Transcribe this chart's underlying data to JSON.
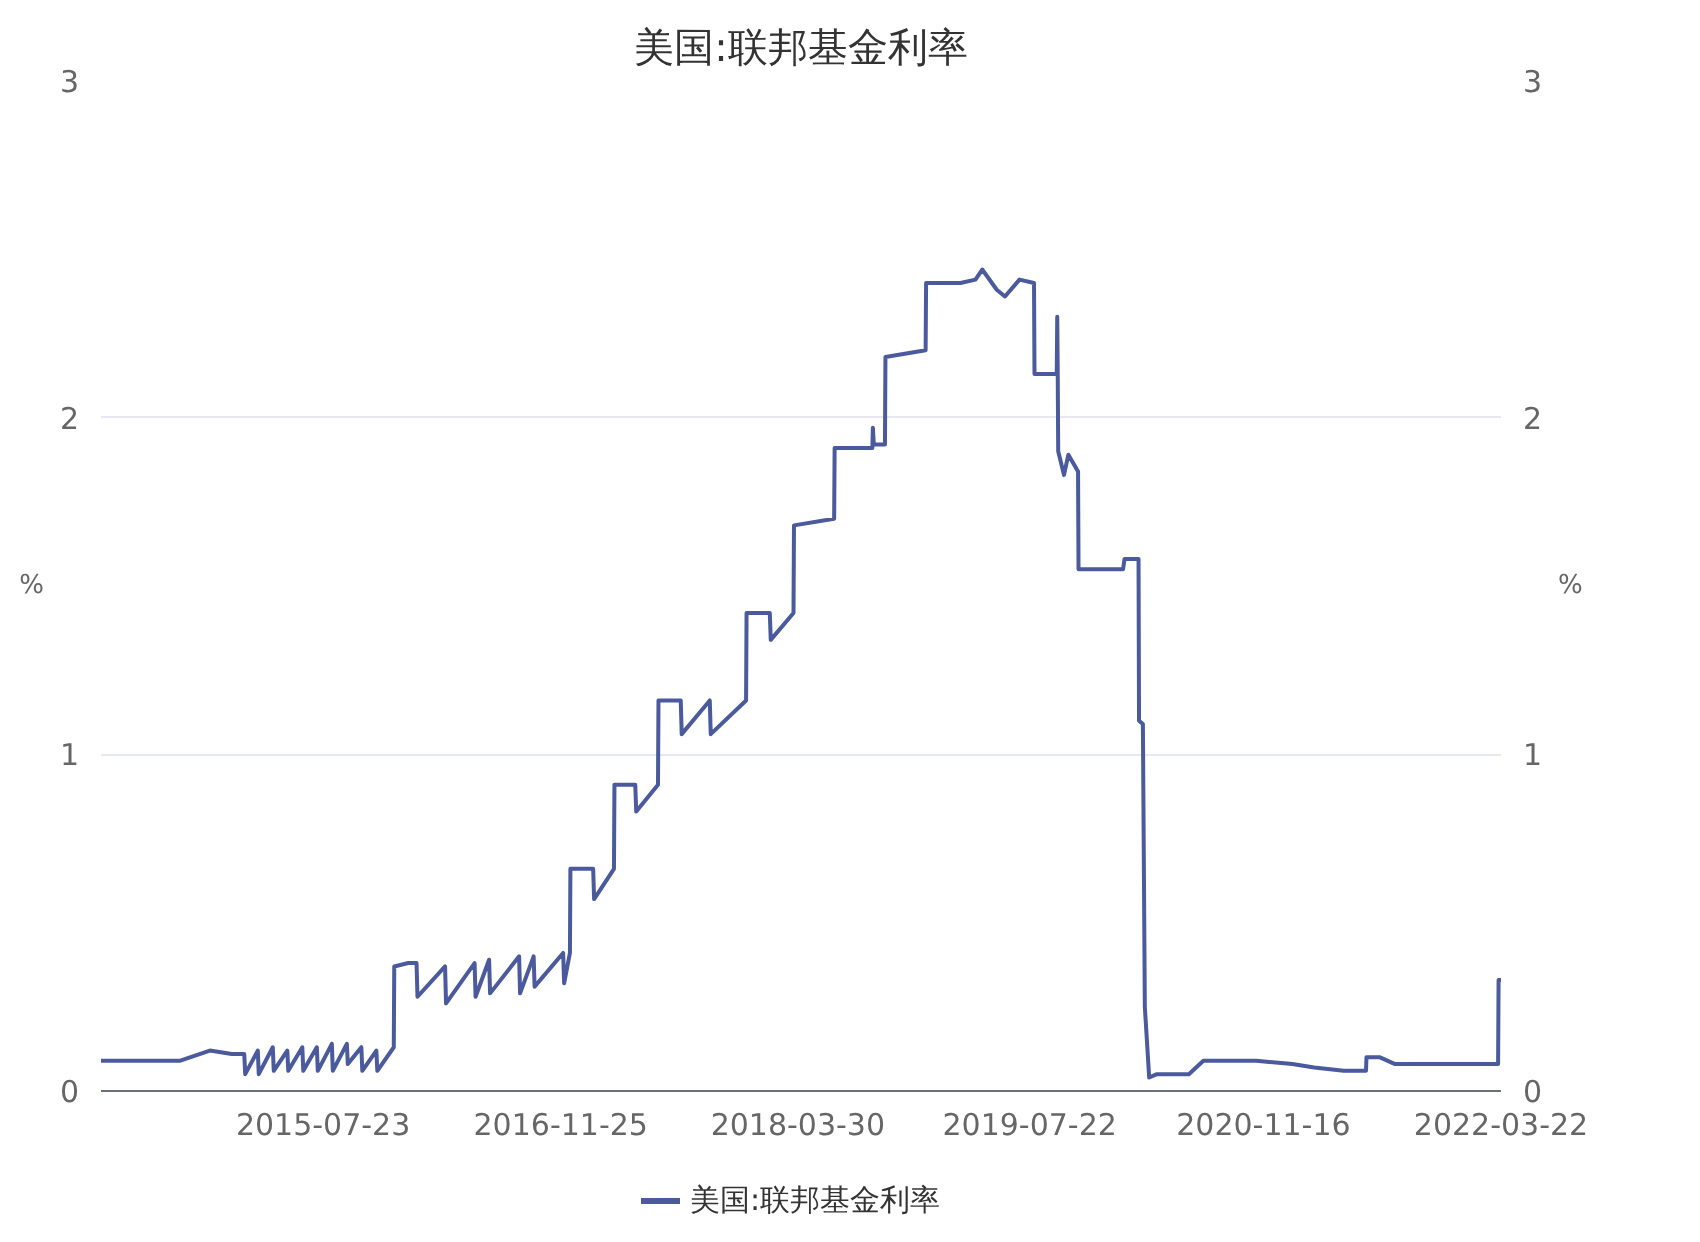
{
  "chart_data": {
    "type": "line",
    "title": "美国:联邦基金利率",
    "ylabel": "%",
    "y2label": "%",
    "x": [
      "2014-04-20",
      "2014-06-01",
      "2014-08-01",
      "2014-10-01",
      "2014-12-01",
      "2015-01-15",
      "2015-02-10",
      "2015-02-12",
      "2015-03-10",
      "2015-03-12",
      "2015-04-10",
      "2015-04-12",
      "2015-05-10",
      "2015-05-12",
      "2015-06-10",
      "2015-06-12",
      "2015-07-10",
      "2015-07-12",
      "2015-08-10",
      "2015-08-12",
      "2015-09-10",
      "2015-09-12",
      "2015-10-10",
      "2015-10-12",
      "2015-11-10",
      "2015-11-12",
      "2015-12-16",
      "2015-12-17",
      "2016-01-15",
      "2016-02-01",
      "2016-02-03",
      "2016-03-31",
      "2016-04-02",
      "2016-05-31",
      "2016-06-02",
      "2016-06-30",
      "2016-07-02",
      "2016-08-31",
      "2016-09-02",
      "2016-09-30",
      "2016-10-02",
      "2016-11-30",
      "2016-12-02",
      "2016-12-14",
      "2016-12-15",
      "2017-01-31",
      "2017-02-02",
      "2017-03-15",
      "2017-03-16",
      "2017-04-28",
      "2017-04-30",
      "2017-06-14",
      "2017-06-15",
      "2017-07-31",
      "2017-08-02",
      "2017-09-29",
      "2017-10-01",
      "2017-12-13",
      "2017-12-14",
      "2018-01-31",
      "2018-02-02",
      "2018-03-21",
      "2018-03-22",
      "2018-06-13",
      "2018-06-14",
      "2018-08-31",
      "2018-09-01",
      "2018-09-03",
      "2018-09-26",
      "2018-09-27",
      "2018-12-19",
      "2018-12-20",
      "2019-03-01",
      "2019-04-01",
      "2019-04-15",
      "2019-05-15",
      "2019-06-01",
      "2019-07-01",
      "2019-07-31",
      "2019-08-01",
      "2019-09-16",
      "2019-09-17",
      "2019-09-18",
      "2019-09-19",
      "2019-10-01",
      "2019-10-10",
      "2019-10-30",
      "2019-10-31",
      "2020-01-31",
      "2020-02-03",
      "2020-02-28",
      "2020-03-03",
      "2020-03-04",
      "2020-03-12",
      "2020-03-16",
      "2020-03-25",
      "2020-04-10",
      "2020-06-15",
      "2020-07-15",
      "2020-11-01",
      "2021-01-15",
      "2021-03-01",
      "2021-05-01",
      "2021-06-16",
      "2021-06-17",
      "2021-07-15",
      "2021-08-15",
      "2022-03-16",
      "2022-03-17",
      "2022-03-22"
    ],
    "series": [
      {
        "name": "美国:联邦基金利率",
        "color": "#4a5a9c",
        "values": [
          0.09,
          0.09,
          0.09,
          0.09,
          0.12,
          0.11,
          0.11,
          0.05,
          0.12,
          0.05,
          0.13,
          0.06,
          0.12,
          0.06,
          0.13,
          0.06,
          0.13,
          0.06,
          0.14,
          0.06,
          0.14,
          0.08,
          0.13,
          0.06,
          0.12,
          0.06,
          0.13,
          0.37,
          0.38,
          0.38,
          0.28,
          0.37,
          0.26,
          0.38,
          0.28,
          0.39,
          0.29,
          0.4,
          0.29,
          0.4,
          0.31,
          0.41,
          0.32,
          0.41,
          0.66,
          0.66,
          0.57,
          0.66,
          0.91,
          0.91,
          0.83,
          0.91,
          1.16,
          1.16,
          1.06,
          1.16,
          1.06,
          1.16,
          1.42,
          1.42,
          1.34,
          1.42,
          1.68,
          1.7,
          1.91,
          1.91,
          1.97,
          1.92,
          1.92,
          2.18,
          2.2,
          2.4,
          2.4,
          2.41,
          2.44,
          2.38,
          2.36,
          2.41,
          2.4,
          2.13,
          2.13,
          2.3,
          2.13,
          1.9,
          1.83,
          1.89,
          1.84,
          1.55,
          1.55,
          1.58,
          1.58,
          1.58,
          1.1,
          1.09,
          0.25,
          0.04,
          0.05,
          0.05,
          0.09,
          0.09,
          0.08,
          0.07,
          0.06,
          0.06,
          0.1,
          0.1,
          0.08,
          0.08,
          0.33,
          0.33
        ]
      }
    ],
    "xlim": [
      "2014-04-20",
      "2022-03-22"
    ],
    "xticks": [
      "2015-07-23",
      "2016-11-25",
      "2018-03-30",
      "2019-07-22",
      "2020-11-16",
      "2022-03-22"
    ],
    "ylim": [
      0,
      3
    ],
    "yticks": [
      0,
      1,
      2,
      3
    ],
    "y2lim": [
      0,
      3
    ],
    "y2ticks": [
      0,
      1,
      2,
      3
    ],
    "grid": "y",
    "legend": "bottom"
  }
}
